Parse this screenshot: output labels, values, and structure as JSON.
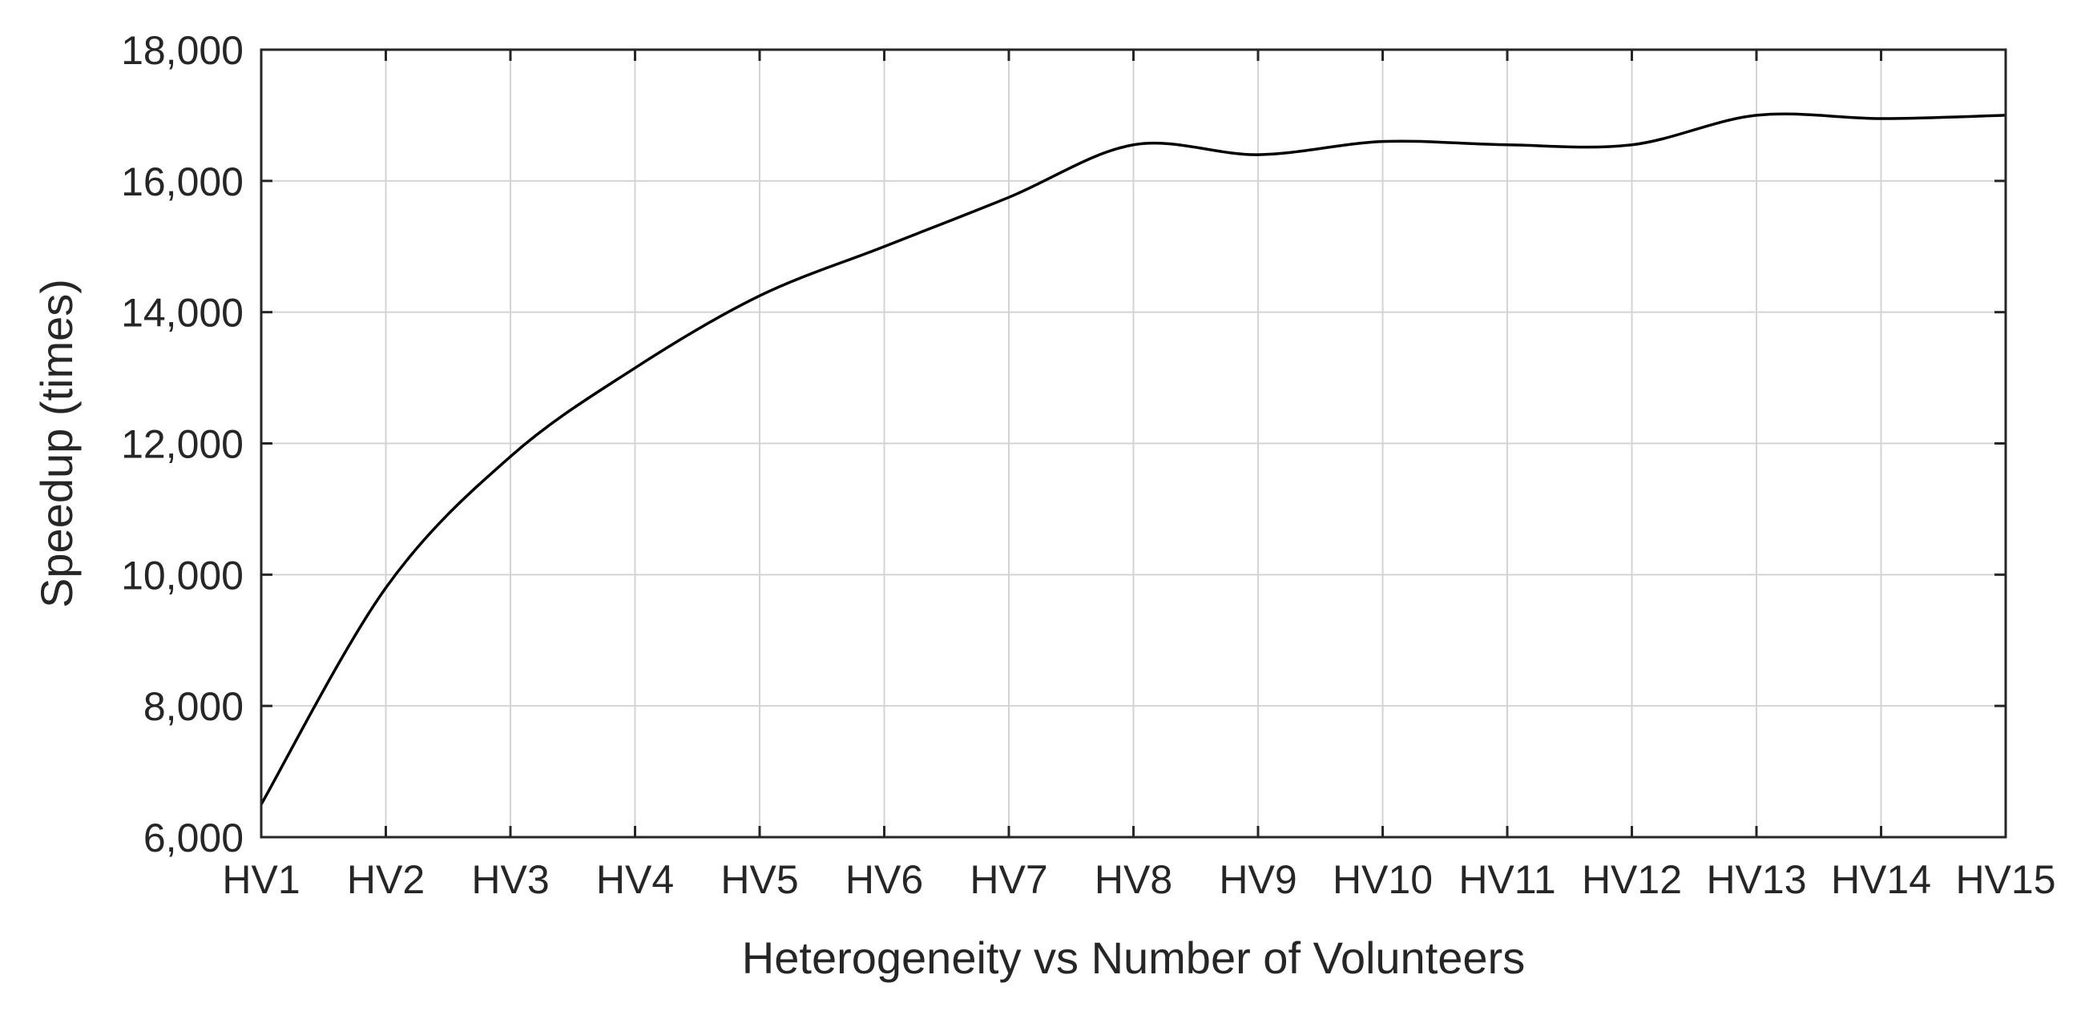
{
  "chart_data": {
    "type": "line",
    "categories": [
      "HV1",
      "HV2",
      "HV3",
      "HV4",
      "HV5",
      "HV6",
      "HV7",
      "HV8",
      "HV9",
      "HV10",
      "HV11",
      "HV12",
      "HV13",
      "HV14",
      "HV15"
    ],
    "series": [
      {
        "values": [
          6500,
          9800,
          11800,
          13150,
          14250,
          15000,
          15750,
          16550,
          16400,
          16600,
          16550,
          16550,
          17000,
          16950,
          17000
        ]
      }
    ],
    "xlabel": "Heterogeneity vs Number of Volunteers",
    "ylabel": "Speedup (times)",
    "ylim": [
      6000,
      18000
    ],
    "yticks": [
      6000,
      8000,
      10000,
      12000,
      14000,
      16000,
      18000
    ],
    "ytick_labels": [
      "6,000",
      "8,000",
      "10,000",
      "12,000",
      "14,000",
      "16,000",
      "18,000"
    ],
    "grid": true,
    "colors": {
      "line": "#000000",
      "grid": "#d4d4d4",
      "axis": "#262626"
    }
  }
}
